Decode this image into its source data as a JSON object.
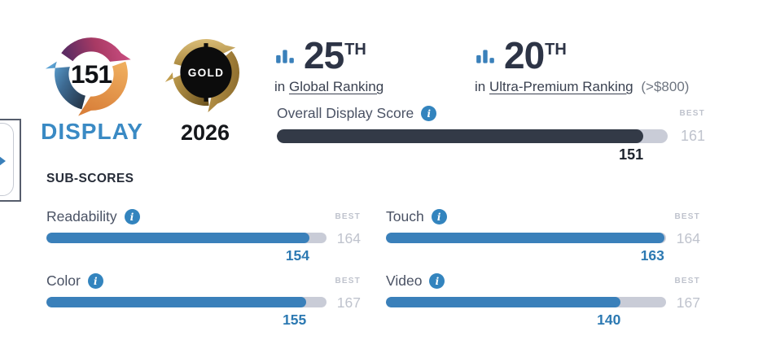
{
  "badge": {
    "score": "151",
    "label": "DISPLAY"
  },
  "award": {
    "tier": "GOLD",
    "year": "2026"
  },
  "rankings": [
    {
      "rank": "25",
      "ordinal": "TH",
      "prefix": "in",
      "category": "Global Ranking",
      "note": ""
    },
    {
      "rank": "20",
      "ordinal": "TH",
      "prefix": "in",
      "category": "Ultra-Premium Ranking",
      "note": "(>$800)"
    }
  ],
  "overall": {
    "label": "Overall Display Score",
    "best_label": "BEST",
    "best": 161,
    "value": 151
  },
  "subscores_heading": "SUB-SCORES",
  "subscores": [
    {
      "label": "Readability",
      "best_label": "BEST",
      "best": 164,
      "value": 154
    },
    {
      "label": "Touch",
      "best_label": "BEST",
      "best": 164,
      "value": 163
    },
    {
      "label": "Color",
      "best_label": "BEST",
      "best": 167,
      "value": 155
    },
    {
      "label": "Video",
      "best_label": "BEST",
      "best": 167,
      "value": 140
    }
  ],
  "colors": {
    "accent_blue": "#3a80ba",
    "value_blue": "#2c79b2",
    "display_blue": "#3a8ac4",
    "overall_fill": "#333a47",
    "bar_track": "#c9ccd7",
    "muted_gray": "#bfc3cd",
    "text_dark": "#2d3446",
    "gold": "#a8843c"
  }
}
